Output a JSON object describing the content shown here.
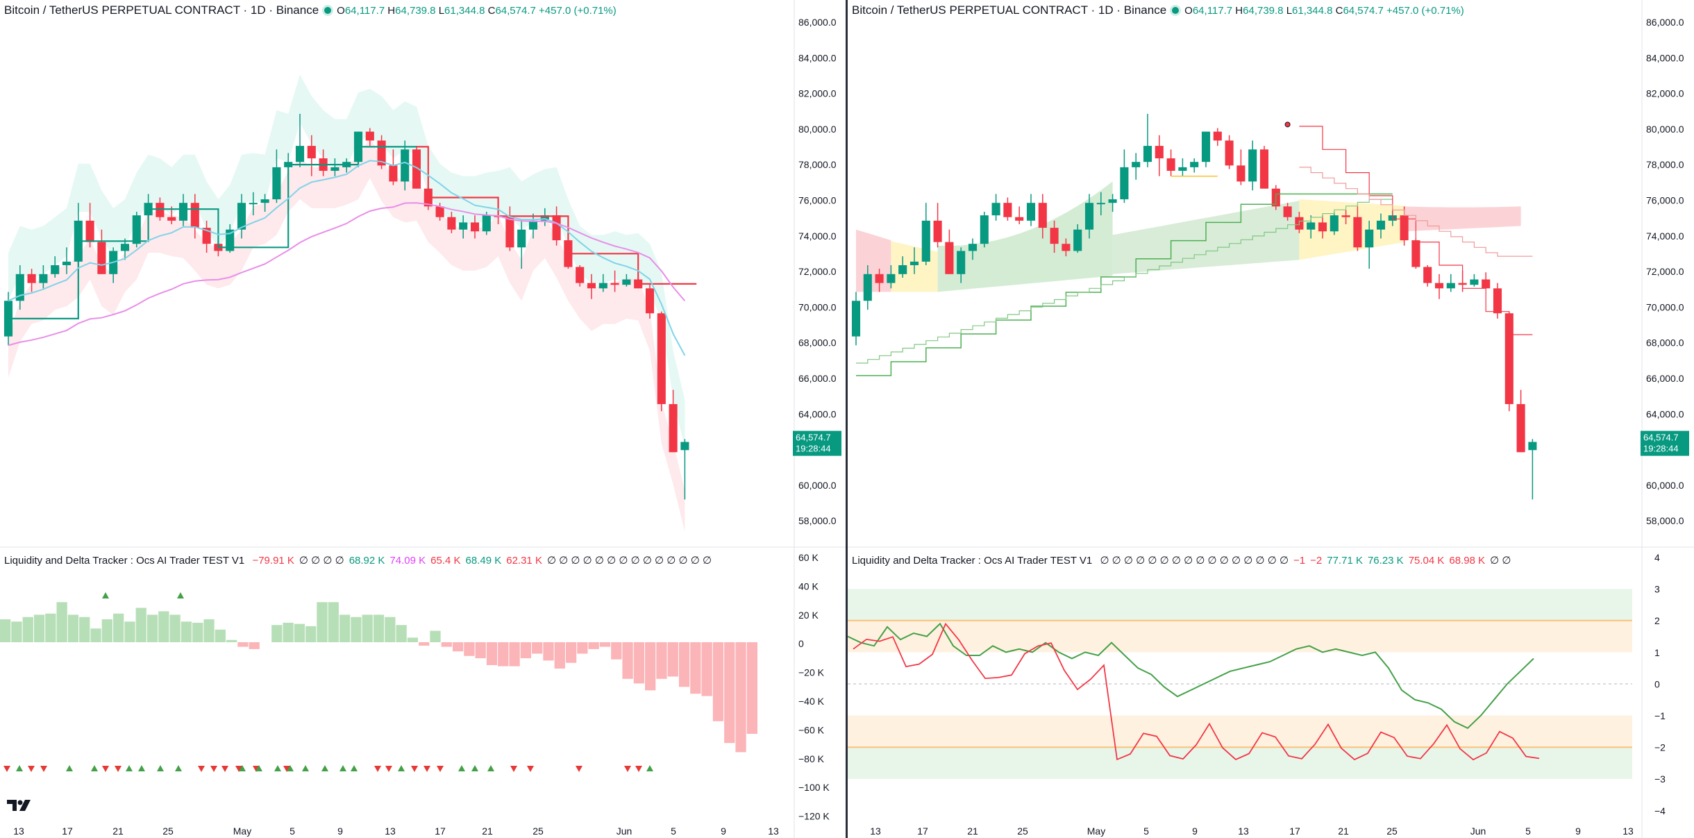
{
  "left": {
    "symbol": "Bitcoin / TetherUS PERPETUAL CONTRACT · 1D · Binance",
    "ohlc": {
      "o_label": "O",
      "o": "64,117.7",
      "h_label": "H",
      "h": "64,739.8",
      "l_label": "L",
      "l": "61,344.8",
      "c_label": "C",
      "c": "64,574.7",
      "chg": "+457.0 (+0.71%)"
    },
    "price_axis": [
      "86,000.0",
      "84,000.0",
      "82,000.0",
      "80,000.0",
      "78,000.0",
      "76,000.0",
      "74,000.0",
      "72,000.0",
      "70,000.0",
      "68,000.0",
      "66,000.0",
      "64,000.0",
      "62,000.0",
      "60,000.0",
      "58,000.0"
    ],
    "price_label": {
      "price": "64,574.7",
      "countdown": "19:28:44"
    },
    "indicator": {
      "title": "Liquidity and Delta Tracker : Ocs AI Trader TEST V1",
      "values": [
        {
          "text": "−79.91 K",
          "color": "#f23645"
        },
        {
          "text": "∅ ∅ ∅ ∅",
          "color": "#131722"
        },
        {
          "text": "68.92 K",
          "color": "#089981"
        },
        {
          "text": "74.09 K",
          "color": "#e040fb"
        },
        {
          "text": "65.4 K",
          "color": "#f23645"
        },
        {
          "text": "68.49 K",
          "color": "#089981"
        },
        {
          "text": "62.31 K",
          "color": "#f23645"
        },
        {
          "text": "∅ ∅ ∅ ∅ ∅ ∅ ∅ ∅ ∅ ∅ ∅ ∅ ∅ ∅",
          "color": "#131722"
        }
      ],
      "axis": [
        "60 K",
        "40 K",
        "20 K",
        "0",
        "−20 K",
        "−40 K",
        "−60 K",
        "−80 K",
        "−100 K",
        "−120 K"
      ]
    },
    "time_axis": [
      "13",
      "17",
      "21",
      "25",
      "May",
      "5",
      "9",
      "13",
      "17",
      "21",
      "25",
      "Jun",
      "5",
      "9",
      "13"
    ]
  },
  "right": {
    "symbol": "Bitcoin / TetherUS PERPETUAL CONTRACT · 1D · Binance",
    "ohlc": {
      "o_label": "O",
      "o": "64,117.7",
      "h_label": "H",
      "h": "64,739.8",
      "l_label": "L",
      "l": "61,344.8",
      "c_label": "C",
      "c": "64,574.7",
      "chg": "+457.0 (+0.71%)"
    },
    "price_axis": [
      "86,000.0",
      "84,000.0",
      "82,000.0",
      "80,000.0",
      "78,000.0",
      "76,000.0",
      "74,000.0",
      "72,000.0",
      "70,000.0",
      "68,000.0",
      "66,000.0",
      "64,000.0",
      "62,000.0",
      "60,000.0",
      "58,000.0"
    ],
    "price_label": {
      "price": "64,574.7",
      "countdown": "19:28:44"
    },
    "indicator": {
      "title": "Liquidity and Delta Tracker : Ocs AI Trader TEST V1",
      "values": [
        {
          "text": "∅ ∅ ∅ ∅ ∅ ∅ ∅ ∅ ∅ ∅ ∅ ∅ ∅ ∅ ∅ ∅",
          "color": "#131722"
        },
        {
          "text": "−1",
          "color": "#f23645"
        },
        {
          "text": "−2",
          "color": "#f23645"
        },
        {
          "text": "77.71 K",
          "color": "#089981"
        },
        {
          "text": "76.23 K",
          "color": "#089981"
        },
        {
          "text": "75.04 K",
          "color": "#f23645"
        },
        {
          "text": "68.98 K",
          "color": "#f23645"
        },
        {
          "text": "∅ ∅",
          "color": "#131722"
        }
      ],
      "axis": [
        "4",
        "3",
        "2",
        "1",
        "0",
        "−1",
        "−2",
        "−3",
        "−4"
      ]
    },
    "time_axis": [
      "13",
      "17",
      "21",
      "25",
      "May",
      "5",
      "9",
      "13",
      "17",
      "21",
      "25",
      "Jun",
      "5",
      "9",
      "13"
    ]
  },
  "colors": {
    "up": "#089981",
    "down": "#f23645",
    "text": "#131722",
    "axis": "#2a2e39"
  },
  "candles": [
    [
      70500,
      73000,
      70000,
      72500
    ],
    [
      72500,
      74500,
      72000,
      74000
    ],
    [
      74000,
      74300,
      73000,
      73500
    ],
    [
      73500,
      74500,
      73200,
      74000
    ],
    [
      74000,
      75000,
      73800,
      74500
    ],
    [
      74500,
      75500,
      74000,
      74700
    ],
    [
      74700,
      78000,
      74500,
      77000
    ],
    [
      77000,
      78000,
      75500,
      75800
    ],
    [
      75800,
      76500,
      74000,
      74000
    ],
    [
      74000,
      75500,
      73500,
      75300
    ],
    [
      75300,
      76000,
      74800,
      75700
    ],
    [
      75700,
      77500,
      75500,
      77300
    ],
    [
      77300,
      78500,
      77000,
      78000
    ],
    [
      78000,
      78300,
      77000,
      77200
    ],
    [
      77200,
      77800,
      76800,
      77000
    ],
    [
      77000,
      78500,
      76700,
      78000
    ],
    [
      78000,
      78500,
      76000,
      76600
    ],
    [
      76600,
      77000,
      75200,
      75700
    ],
    [
      75700,
      76000,
      75000,
      75300
    ],
    [
      75300,
      76800,
      75200,
      76500
    ],
    [
      76500,
      78500,
      76000,
      78000
    ],
    [
      78000,
      78600,
      77300,
      78000
    ],
    [
      78000,
      78500,
      77500,
      78200
    ],
    [
      78200,
      81000,
      78000,
      80000
    ],
    [
      80000,
      80800,
      79300,
      80300
    ],
    [
      80300,
      83000,
      80000,
      81200
    ],
    [
      81200,
      81800,
      79500,
      80500
    ],
    [
      80500,
      81000,
      79500,
      79800
    ],
    [
      79800,
      80500,
      79500,
      80000
    ],
    [
      80000,
      80500,
      79700,
      80300
    ],
    [
      80300,
      82000,
      80000,
      82000
    ],
    [
      82000,
      82200,
      81200,
      81500
    ],
    [
      81500,
      81800,
      79900,
      80100
    ],
    [
      80100,
      81000,
      79000,
      79200
    ],
    [
      79200,
      81500,
      78700,
      81000
    ],
    [
      81000,
      81200,
      78800,
      78800
    ],
    [
      78800,
      79000,
      77600,
      77800
    ],
    [
      77800,
      78000,
      77000,
      77200
    ],
    [
      77200,
      77500,
      76300,
      76500
    ],
    [
      76500,
      77300,
      76000,
      76900
    ],
    [
      76900,
      77300,
      76000,
      76400
    ],
    [
      76400,
      77500,
      76200,
      77300
    ],
    [
      77300,
      77600,
      76800,
      77200
    ],
    [
      77200,
      77800,
      75300,
      75500
    ],
    [
      75500,
      77000,
      74300,
      76500
    ],
    [
      76500,
      77400,
      76000,
      77000
    ],
    [
      77000,
      77700,
      76700,
      77300
    ],
    [
      77300,
      77800,
      75600,
      75900
    ],
    [
      75900,
      76000,
      74300,
      74400
    ],
    [
      74400,
      74500,
      73300,
      73500
    ],
    [
      73500,
      74000,
      72600,
      73200
    ],
    [
      73200,
      74000,
      73000,
      73500
    ],
    [
      73500,
      74200,
      73000,
      73400
    ],
    [
      73400,
      74000,
      73300,
      73700
    ],
    [
      73700,
      74100,
      73200,
      73200
    ],
    [
      73200,
      73500,
      71500,
      71800
    ],
    [
      71800,
      71900,
      66300,
      66700
    ],
    [
      66700,
      67500,
      64000,
      64000
    ],
    [
      64117.7,
      64739.8,
      61344.8,
      64574.7
    ]
  ],
  "left_histogram": [
    20,
    18,
    22,
    24,
    25,
    35,
    24,
    22,
    12,
    20,
    25,
    18,
    30,
    24,
    27,
    24,
    18,
    17,
    20,
    11,
    2,
    -4,
    -6,
    0,
    15,
    17,
    16,
    14,
    35,
    35,
    24,
    22,
    24,
    24,
    22,
    15,
    4,
    -3,
    10,
    -4,
    -8,
    -12,
    -14,
    -20,
    -21,
    -21,
    -14,
    -10,
    -16,
    -23,
    -18,
    -10,
    -6,
    -4,
    -15,
    -32,
    -36,
    -42,
    -32,
    -30,
    -39,
    -45,
    -47,
    -69,
    -88,
    -96,
    -80
  ],
  "right_green_line": [
    1.5,
    1.3,
    1.2,
    1.8,
    1.4,
    1.6,
    1.5,
    1.9,
    1.2,
    0.9,
    0.9,
    1.2,
    1.0,
    1.1,
    1.0,
    1.3,
    1.0,
    0.8,
    1.0,
    0.9,
    1.3,
    0.9,
    0.5,
    0.3,
    -0.1,
    -0.4,
    -0.2,
    0.0,
    0.2,
    0.4,
    0.5,
    0.6,
    0.7,
    0.9,
    1.1,
    1.2,
    1.0,
    1.1,
    1.0,
    0.9,
    1.0,
    0.5,
    -0.2,
    -0.5,
    -0.6,
    -0.8,
    -1.2,
    -1.4,
    -1.0,
    -0.5,
    0.0,
    0.4,
    0.8
  ]
}
